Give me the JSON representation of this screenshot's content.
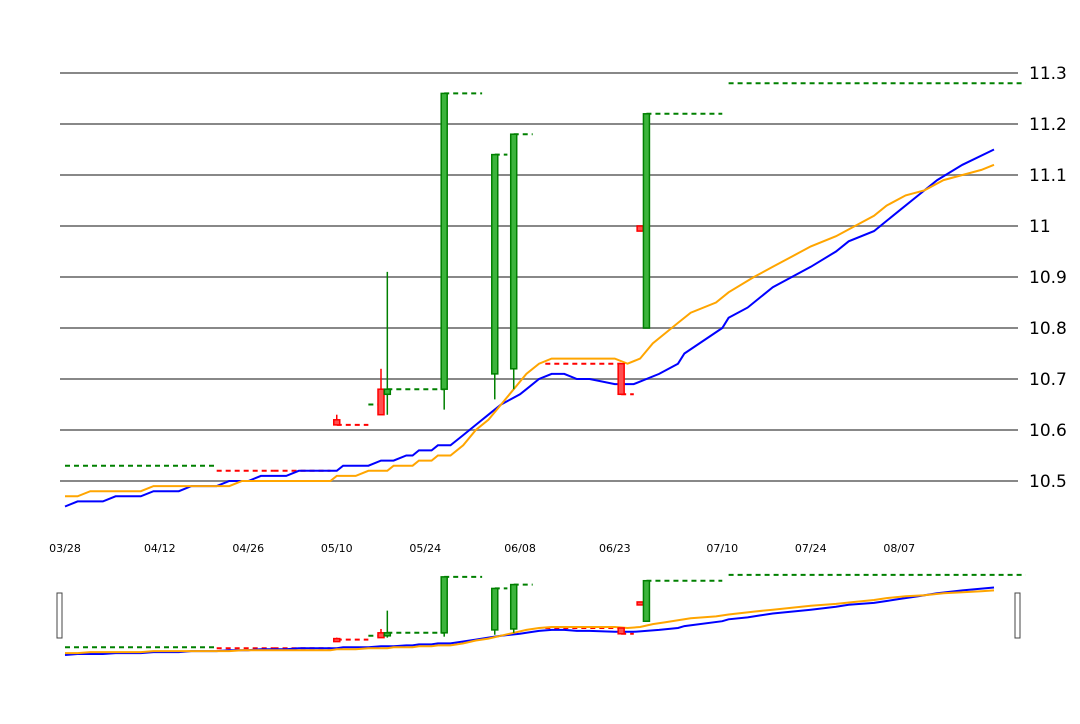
{
  "chart_data": {
    "type": "candlestick",
    "ylim": [
      10.45,
      11.3
    ],
    "y_ticks": [
      "10.5",
      "10.6",
      "10.7",
      "10.8",
      "10.9",
      "11",
      "11.1",
      "11.2",
      "11.3"
    ],
    "x_ticks": [
      "03/28",
      "04/12",
      "04/26",
      "05/10",
      "05/24",
      "06/08",
      "06/23",
      "07/10",
      "07/24",
      "08/07"
    ],
    "grid": true,
    "colors": {
      "up": "#008000",
      "down": "#ff0000",
      "line_a": "#0000ff",
      "line_b": "#ffa500",
      "grid": "#888888"
    },
    "candles": [
      {
        "date": "05/10",
        "open": 10.62,
        "close": 10.61,
        "high": 10.63,
        "low": 10.61
      },
      {
        "date": "05/17",
        "open": 10.68,
        "close": 10.63,
        "high": 10.72,
        "low": 10.63
      },
      {
        "date": "05/18",
        "open": 10.67,
        "close": 10.68,
        "high": 10.91,
        "low": 10.63
      },
      {
        "date": "05/27",
        "open": 10.68,
        "close": 11.26,
        "high": 11.26,
        "low": 10.64
      },
      {
        "date": "06/04",
        "open": 10.71,
        "close": 11.14,
        "high": 11.14,
        "low": 10.66
      },
      {
        "date": "06/07",
        "open": 10.72,
        "close": 11.18,
        "high": 11.18,
        "low": 10.68
      },
      {
        "date": "06/24",
        "open": 10.73,
        "close": 10.67,
        "high": 10.73,
        "low": 10.67
      },
      {
        "date": "06/27",
        "open": 11.0,
        "close": 10.99,
        "high": 11.0,
        "low": 10.99
      },
      {
        "date": "06/28",
        "open": 10.8,
        "close": 11.22,
        "high": 11.22,
        "low": 10.8
      }
    ],
    "levels": [
      {
        "from": "03/28",
        "to": "04/21",
        "value": 10.53,
        "color": "#008000"
      },
      {
        "from": "04/21",
        "to": "04/30",
        "value": 10.52,
        "color": "#ff0000"
      },
      {
        "from": "04/30",
        "to": "05/09",
        "value": 10.52,
        "color": "#ff0000"
      },
      {
        "from": "05/10",
        "to": "05/15",
        "value": 10.61,
        "color": "#ff0000"
      },
      {
        "from": "05/15",
        "to": "05/17",
        "value": 10.65,
        "color": "#008000"
      },
      {
        "from": "05/18",
        "to": "05/27",
        "value": 10.68,
        "color": "#008000"
      },
      {
        "from": "05/27",
        "to": "06/02",
        "value": 11.26,
        "color": "#008000"
      },
      {
        "from": "06/04",
        "to": "06/06",
        "value": 11.14,
        "color": "#008000"
      },
      {
        "from": "06/07",
        "to": "06/10",
        "value": 11.18,
        "color": "#008000"
      },
      {
        "from": "06/12",
        "to": "06/24",
        "value": 10.73,
        "color": "#ff0000"
      },
      {
        "from": "06/24",
        "to": "06/26",
        "value": 10.67,
        "color": "#ff0000"
      },
      {
        "from": "06/28",
        "to": "07/10",
        "value": 11.22,
        "color": "#008000"
      },
      {
        "from": "07/11",
        "to": "08/27",
        "value": 11.28,
        "color": "#008000"
      }
    ],
    "series": [
      {
        "color": "#0000ff",
        "points": [
          [
            "03/28",
            10.45
          ],
          [
            "03/30",
            10.46
          ],
          [
            "04/03",
            10.46
          ],
          [
            "04/05",
            10.47
          ],
          [
            "04/09",
            10.47
          ],
          [
            "04/11",
            10.48
          ],
          [
            "04/15",
            10.48
          ],
          [
            "04/17",
            10.49
          ],
          [
            "04/21",
            10.49
          ],
          [
            "04/23",
            10.5
          ],
          [
            "04/26",
            10.5
          ],
          [
            "04/28",
            10.51
          ],
          [
            "05/02",
            10.51
          ],
          [
            "05/04",
            10.52
          ],
          [
            "05/10",
            10.52
          ],
          [
            "05/11",
            10.53
          ],
          [
            "05/15",
            10.53
          ],
          [
            "05/17",
            10.54
          ],
          [
            "05/19",
            10.54
          ],
          [
            "05/21",
            10.55
          ],
          [
            "05/22",
            10.55
          ],
          [
            "05/23",
            10.56
          ],
          [
            "05/25",
            10.56
          ],
          [
            "05/26",
            10.57
          ],
          [
            "05/28",
            10.57
          ],
          [
            "05/30",
            10.59
          ],
          [
            "06/01",
            10.61
          ],
          [
            "06/03",
            10.63
          ],
          [
            "06/05",
            10.65
          ],
          [
            "06/08",
            10.67
          ],
          [
            "06/09",
            10.68
          ],
          [
            "06/11",
            10.7
          ],
          [
            "06/13",
            10.71
          ],
          [
            "06/15",
            10.71
          ],
          [
            "06/17",
            10.7
          ],
          [
            "06/19",
            10.7
          ],
          [
            "06/23",
            10.69
          ],
          [
            "06/26",
            10.69
          ],
          [
            "06/30",
            10.71
          ],
          [
            "07/03",
            10.73
          ],
          [
            "07/04",
            10.75
          ],
          [
            "07/10",
            10.8
          ],
          [
            "07/11",
            10.82
          ],
          [
            "07/14",
            10.84
          ],
          [
            "07/16",
            10.86
          ],
          [
            "07/18",
            10.88
          ],
          [
            "07/21",
            10.9
          ],
          [
            "07/24",
            10.92
          ],
          [
            "07/28",
            10.95
          ],
          [
            "07/30",
            10.97
          ],
          [
            "08/03",
            10.99
          ],
          [
            "08/05",
            11.01
          ],
          [
            "08/07",
            11.03
          ],
          [
            "08/10",
            11.06
          ],
          [
            "08/13",
            11.09
          ],
          [
            "08/17",
            11.12
          ],
          [
            "08/22",
            11.15
          ]
        ]
      },
      {
        "color": "#ffa500",
        "points": [
          [
            "03/28",
            10.47
          ],
          [
            "03/30",
            10.47
          ],
          [
            "04/01",
            10.48
          ],
          [
            "04/07",
            10.48
          ],
          [
            "04/09",
            10.48
          ],
          [
            "04/11",
            10.49
          ],
          [
            "04/23",
            10.49
          ],
          [
            "04/25",
            10.5
          ],
          [
            "05/09",
            10.5
          ],
          [
            "05/10",
            10.51
          ],
          [
            "05/13",
            10.51
          ],
          [
            "05/15",
            10.52
          ],
          [
            "05/18",
            10.52
          ],
          [
            "05/19",
            10.53
          ],
          [
            "05/22",
            10.53
          ],
          [
            "05/23",
            10.54
          ],
          [
            "05/25",
            10.54
          ],
          [
            "05/26",
            10.55
          ],
          [
            "05/28",
            10.55
          ],
          [
            "05/30",
            10.57
          ],
          [
            "06/01",
            10.6
          ],
          [
            "06/03",
            10.62
          ],
          [
            "06/05",
            10.65
          ],
          [
            "06/07",
            10.68
          ],
          [
            "06/09",
            10.71
          ],
          [
            "06/11",
            10.73
          ],
          [
            "06/13",
            10.74
          ],
          [
            "06/23",
            10.74
          ],
          [
            "06/25",
            10.73
          ],
          [
            "06/27",
            10.74
          ],
          [
            "06/29",
            10.77
          ],
          [
            "07/01",
            10.79
          ],
          [
            "07/03",
            10.81
          ],
          [
            "07/05",
            10.83
          ],
          [
            "07/09",
            10.85
          ],
          [
            "07/11",
            10.87
          ],
          [
            "07/15",
            10.9
          ],
          [
            "07/18",
            10.92
          ],
          [
            "07/21",
            10.94
          ],
          [
            "07/24",
            10.96
          ],
          [
            "07/28",
            10.98
          ],
          [
            "07/31",
            11.0
          ],
          [
            "08/03",
            11.02
          ],
          [
            "08/05",
            11.04
          ],
          [
            "08/08",
            11.06
          ],
          [
            "08/11",
            11.07
          ],
          [
            "08/14",
            11.09
          ],
          [
            "08/17",
            11.1
          ],
          [
            "08/20",
            11.11
          ],
          [
            "08/22",
            11.12
          ]
        ]
      }
    ]
  }
}
